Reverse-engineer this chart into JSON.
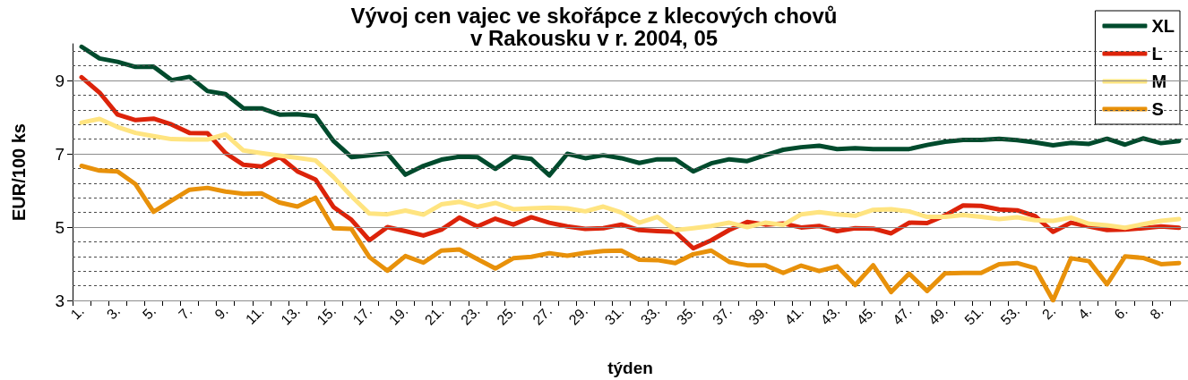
{
  "chart_data": {
    "type": "line",
    "title": "Vývoj cen vajec ve skořápce z klecových chovů v Rakousku v r. 2004, 05",
    "xlabel": "týden",
    "ylabel": "EUR/100 ks",
    "categories": [
      "1.",
      null,
      "3.",
      null,
      "5.",
      null,
      "7.",
      null,
      "9.",
      null,
      "11.",
      null,
      "13.",
      null,
      "15.",
      null,
      "17.",
      null,
      "19.",
      null,
      "21.",
      null,
      "23.",
      null,
      "25.",
      null,
      "27.",
      null,
      "29.",
      null,
      "31.",
      null,
      "33.",
      null,
      "35.",
      null,
      "37.",
      null,
      "39.",
      null,
      "41.",
      null,
      "43.",
      null,
      "45.",
      null,
      "47.",
      null,
      "49.",
      null,
      "51.",
      null,
      "53.",
      null,
      "2.",
      null,
      "4.",
      null,
      "6.",
      null,
      "8.",
      null
    ],
    "series": [
      {
        "name": "XL",
        "color": "#004b2d",
        "values": [
          9.92,
          9.6,
          9.51,
          9.37,
          9.38,
          9.01,
          9.1,
          8.71,
          8.63,
          8.24,
          8.24,
          8.07,
          8.08,
          8.03,
          7.35,
          6.91,
          6.96,
          7.01,
          6.43,
          6.67,
          6.84,
          6.92,
          6.91,
          6.59,
          6.92,
          6.86,
          6.41,
          7.0,
          6.88,
          6.96,
          6.88,
          6.75,
          6.85,
          6.85,
          6.52,
          6.74,
          6.85,
          6.8,
          6.96,
          7.11,
          7.18,
          7.22,
          7.13,
          7.15,
          7.13,
          7.13,
          7.13,
          7.24,
          7.33,
          7.38,
          7.38,
          7.41,
          7.37,
          7.31,
          7.23,
          7.3,
          7.27,
          7.41,
          7.25,
          7.42,
          7.29,
          7.35
        ]
      },
      {
        "name": "L",
        "color": "#dc230a",
        "values": [
          9.09,
          8.67,
          8.07,
          7.92,
          7.96,
          7.8,
          7.57,
          7.56,
          7.02,
          6.7,
          6.65,
          6.92,
          6.52,
          6.3,
          5.55,
          5.2,
          4.64,
          5.0,
          4.89,
          4.77,
          4.93,
          5.26,
          5.02,
          5.23,
          5.07,
          5.27,
          5.12,
          5.02,
          4.95,
          4.97,
          5.07,
          4.92,
          4.89,
          4.87,
          4.42,
          4.64,
          4.92,
          5.14,
          5.07,
          5.1,
          4.99,
          5.03,
          4.89,
          4.97,
          4.96,
          4.83,
          5.12,
          5.11,
          5.32,
          5.59,
          5.58,
          5.48,
          5.46,
          5.3,
          4.87,
          5.12,
          5.02,
          4.92,
          4.93,
          4.97,
          5.02,
          4.98
        ]
      },
      {
        "name": "M",
        "color": "#ffe480",
        "values": [
          7.85,
          7.95,
          7.73,
          7.57,
          7.48,
          7.4,
          7.39,
          7.39,
          7.53,
          7.09,
          7.02,
          6.95,
          6.89,
          6.82,
          6.37,
          5.84,
          5.37,
          5.35,
          5.45,
          5.34,
          5.62,
          5.69,
          5.55,
          5.66,
          5.49,
          5.51,
          5.53,
          5.51,
          5.43,
          5.56,
          5.4,
          5.12,
          5.28,
          4.92,
          4.97,
          5.03,
          5.12,
          5.0,
          5.12,
          5.06,
          5.35,
          5.41,
          5.35,
          5.31,
          5.47,
          5.49,
          5.43,
          5.28,
          5.28,
          5.33,
          5.28,
          5.22,
          5.27,
          5.19,
          5.17,
          5.26,
          5.09,
          5.05,
          4.98,
          5.08,
          5.17,
          5.22
        ]
      },
      {
        "name": "S",
        "color": "#e8910a",
        "values": [
          6.67,
          6.54,
          6.52,
          6.17,
          5.42,
          5.72,
          6.02,
          6.07,
          5.97,
          5.91,
          5.92,
          5.67,
          5.56,
          5.8,
          4.97,
          4.95,
          4.18,
          3.81,
          4.21,
          4.03,
          4.36,
          4.39,
          4.13,
          3.87,
          4.15,
          4.19,
          4.29,
          4.22,
          4.3,
          4.35,
          4.36,
          4.11,
          4.1,
          4.02,
          4.26,
          4.36,
          4.05,
          3.96,
          3.96,
          3.75,
          3.95,
          3.8,
          3.93,
          3.42,
          3.96,
          3.23,
          3.73,
          3.26,
          3.74,
          3.75,
          3.75,
          3.99,
          4.02,
          3.88,
          3.0,
          4.15,
          4.07,
          3.44,
          4.2,
          4.16,
          3.99,
          4.02
        ]
      }
    ],
    "ylim": [
      3,
      10
    ],
    "yticks": [
      3,
      {
        "value": 3.4,
        "label": null
      },
      {
        "value": 3.8,
        "label": null
      },
      {
        "value": 4.2,
        "label": null
      },
      {
        "value": 4.6,
        "label": null
      },
      5,
      {
        "value": 5.4,
        "label": null
      },
      {
        "value": 5.8,
        "label": null
      },
      {
        "value": 6.2,
        "label": null
      },
      {
        "value": 6.6,
        "label": null
      },
      7,
      {
        "value": 7.4,
        "label": null
      },
      {
        "value": 7.8,
        "label": null
      },
      {
        "value": 8.2,
        "label": null
      },
      {
        "value": 8.6,
        "label": null
      },
      9,
      {
        "value": 9.4,
        "label": null
      },
      {
        "value": 9.8,
        "label": null
      }
    ],
    "grid": "y",
    "legend": "top right",
    "marker": "none",
    "line_style": "solid"
  }
}
